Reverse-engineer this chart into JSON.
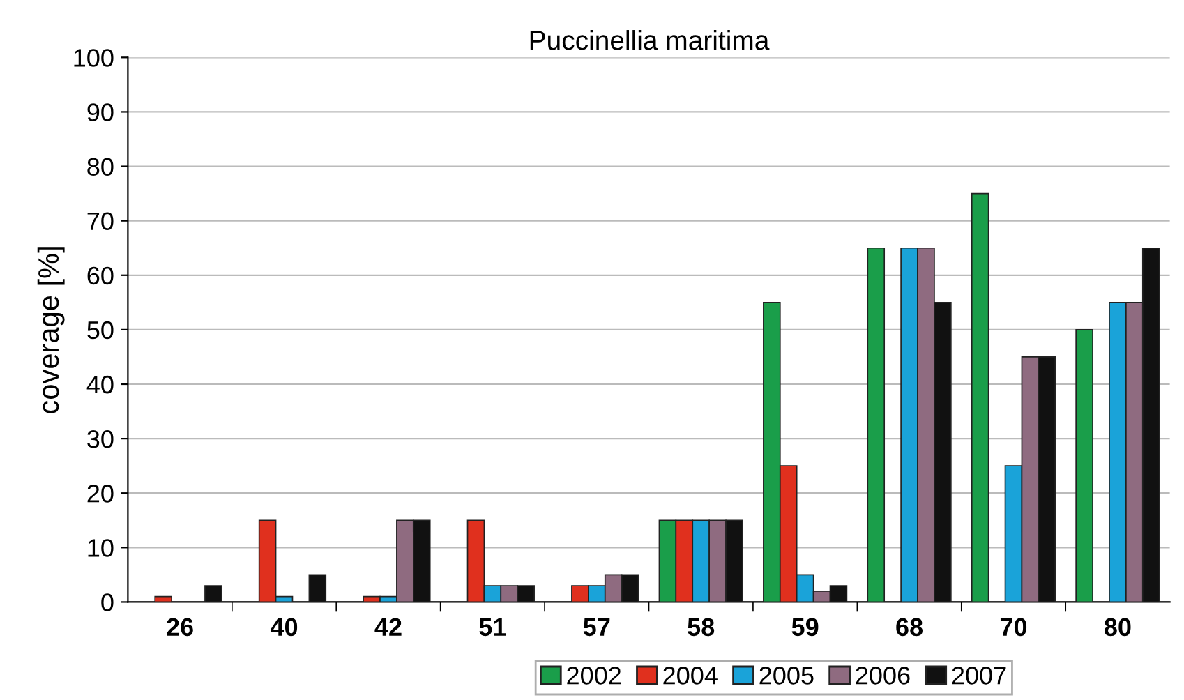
{
  "chart_data": {
    "type": "bar",
    "title": "Puccinellia maritima",
    "ylabel": "coverage [%]",
    "categories": [
      "26",
      "40",
      "42",
      "51",
      "57",
      "58",
      "59",
      "68",
      "70",
      "80"
    ],
    "series": [
      {
        "name": "2002",
        "color": "#1a9e4a",
        "values": [
          null,
          null,
          null,
          null,
          null,
          15,
          55,
          65,
          75,
          50
        ]
      },
      {
        "name": "2004",
        "color": "#e0301e",
        "values": [
          1,
          15,
          1,
          15,
          3,
          15,
          25,
          null,
          null,
          null
        ]
      },
      {
        "name": "2005",
        "color": "#1aa3d9",
        "values": [
          null,
          1,
          1,
          3,
          3,
          15,
          5,
          65,
          25,
          55
        ]
      },
      {
        "name": "2006",
        "color": "#8f6b80",
        "values": [
          null,
          null,
          15,
          3,
          5,
          15,
          2,
          65,
          45,
          55
        ]
      },
      {
        "name": "2007",
        "color": "#111111",
        "values": [
          3,
          5,
          15,
          3,
          5,
          15,
          3,
          55,
          45,
          65
        ]
      }
    ],
    "ylim": [
      0,
      100
    ],
    "yticks": [
      0,
      10,
      20,
      30,
      40,
      50,
      60,
      70,
      80,
      90,
      100
    ],
    "grid": "y",
    "legend": "bottom"
  }
}
